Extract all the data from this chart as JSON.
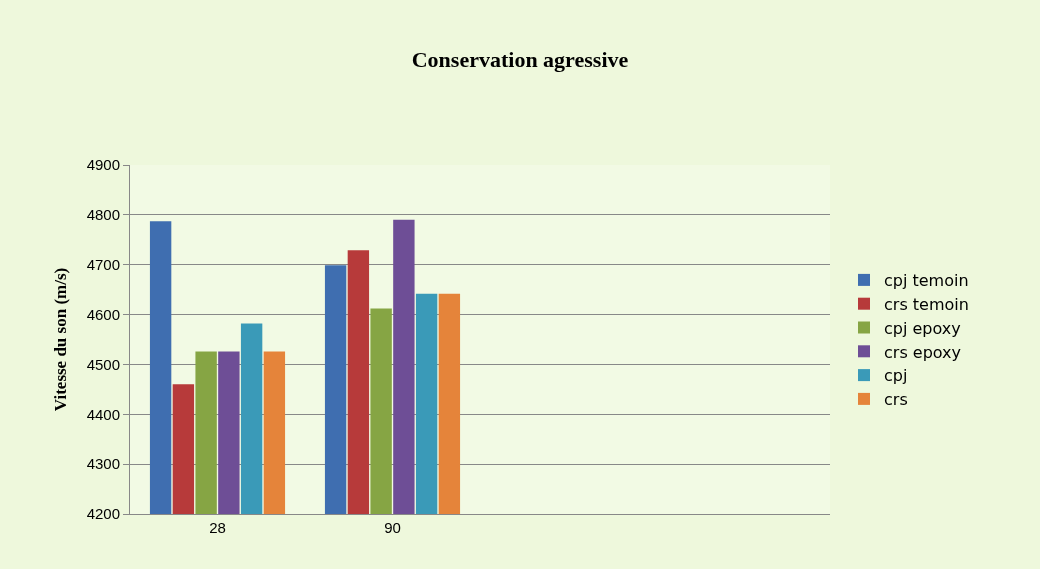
{
  "chart_data": {
    "type": "bar",
    "title": "Conservation agressive",
    "ylabel": "Vitesse du son (m/s)",
    "categories": [
      "28",
      "90",
      null,
      null
    ],
    "series": [
      {
        "name": "cpj temoin",
        "color": "#3f6eb0",
        "values": [
          4787,
          4699,
          null,
          null
        ]
      },
      {
        "name": "crs temoin",
        "color": "#b73a3a",
        "values": [
          4460,
          4729,
          null,
          null
        ]
      },
      {
        "name": "cpj epoxy",
        "color": "#86a544",
        "values": [
          4526,
          4612,
          null,
          null
        ]
      },
      {
        "name": "crs epoxy",
        "color": "#6e4e96",
        "values": [
          4526,
          4790,
          null,
          null
        ]
      },
      {
        "name": "cpj",
        "color": "#3a9ab8",
        "values": [
          4582,
          4642,
          null,
          null
        ]
      },
      {
        "name": "crs",
        "color": "#e5843a",
        "values": [
          4526,
          4642,
          null,
          null
        ]
      }
    ],
    "ylim": [
      4200,
      4900
    ],
    "yticks": [
      4200,
      4300,
      4400,
      4500,
      4600,
      4700,
      4800,
      4900
    ],
    "grid": "y",
    "legend": "right"
  }
}
